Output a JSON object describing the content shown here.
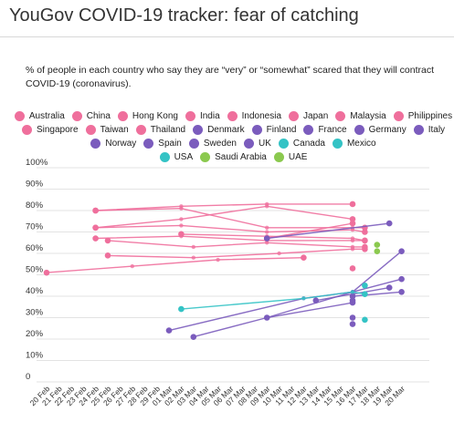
{
  "page": {
    "title": "YouGov COVID-19 tracker: fear of catching",
    "subtitle": "% of people in each country who say they are “very” or “somewhat” scared that they will contract COVID-19 (coronavirus)."
  },
  "colors": {
    "asia": "#ef6f9c",
    "europe": "#7b5cbd",
    "americas": "#34c3c5",
    "gulf": "#8bc94f"
  },
  "chart_data": {
    "type": "line",
    "title": "YouGov COVID-19 tracker: fear of catching",
    "xlabel": "",
    "ylabel": "",
    "ylim": [
      0,
      100
    ],
    "y_ticks": [
      "0",
      "10%",
      "20%",
      "30%",
      "40%",
      "50%",
      "60%",
      "70%",
      "80%",
      "90%",
      "100%"
    ],
    "x_ticks": [
      "20 Feb",
      "21 Feb",
      "22 Feb",
      "23 Feb",
      "24 Feb",
      "25 Feb",
      "26 Feb",
      "27 Feb",
      "28 Feb",
      "29 Feb",
      "01 Mar",
      "02 Mar",
      "03 Mar",
      "04 Mar",
      "05 Mar",
      "06 Mar",
      "07 Mar",
      "08 Mar",
      "09 Mar",
      "10 Mar",
      "11 Mar",
      "12 Mar",
      "13 Mar",
      "14 Mar",
      "15 Mar",
      "16 Mar",
      "17 Mar",
      "18 Mar",
      "19 Mar",
      "20 Mar"
    ],
    "grid": true,
    "legend_position": "top",
    "series": [
      {
        "name": "Australia",
        "color": "#ef6f9c",
        "points": [
          [
            4,
            67
          ],
          [
            11,
            68
          ],
          [
            18,
            66
          ],
          [
            25,
            66
          ],
          [
            26,
            66
          ]
        ]
      },
      {
        "name": "China",
        "color": "#ef6f9c",
        "points": [
          [
            0,
            51
          ],
          [
            7,
            54
          ],
          [
            14,
            57
          ],
          [
            21,
            58
          ]
        ]
      },
      {
        "name": "Hong Kong",
        "color": "#ef6f9c",
        "points": [
          [
            4,
            80
          ],
          [
            11,
            82
          ],
          [
            18,
            83
          ],
          [
            25,
            83
          ]
        ]
      },
      {
        "name": "India",
        "color": "#ef6f9c",
        "points": [
          [
            4,
            72
          ],
          [
            11,
            76
          ],
          [
            18,
            82
          ],
          [
            25,
            76
          ]
        ]
      },
      {
        "name": "Indonesia",
        "color": "#ef6f9c",
        "points": [
          [
            4,
            72
          ],
          [
            11,
            73
          ],
          [
            18,
            70
          ],
          [
            25,
            71
          ],
          [
            26,
            70
          ]
        ]
      },
      {
        "name": "Japan",
        "color": "#ef6f9c",
        "points": [
          [
            4,
            80
          ],
          [
            11,
            81
          ],
          [
            18,
            72
          ],
          [
            25,
            72
          ],
          [
            26,
            72
          ]
        ]
      },
      {
        "name": "Malaysia",
        "color": "#ef6f9c",
        "points": [
          [
            25,
            53
          ]
        ]
      },
      {
        "name": "Philippines",
        "color": "#ef6f9c",
        "points": [
          [
            11,
            69
          ],
          [
            18,
            68
          ],
          [
            25,
            67
          ],
          [
            26,
            66
          ]
        ]
      },
      {
        "name": "Singapore",
        "color": "#ef6f9c",
        "points": [
          [
            5,
            66
          ],
          [
            12,
            63
          ],
          [
            18,
            65
          ],
          [
            25,
            63
          ],
          [
            26,
            63
          ]
        ]
      },
      {
        "name": "Taiwan",
        "color": "#ef6f9c",
        "points": [
          [
            5,
            59
          ],
          [
            12,
            58
          ],
          [
            19,
            60
          ],
          [
            25,
            62
          ],
          [
            26,
            62
          ]
        ]
      },
      {
        "name": "Thailand",
        "color": "#ef6f9c",
        "points": [
          [
            18,
            67
          ],
          [
            25,
            74
          ]
        ]
      },
      {
        "name": "Denmark",
        "color": "#7b5cbd",
        "points": [
          [
            25,
            27
          ]
        ]
      },
      {
        "name": "Finland",
        "color": "#7b5cbd",
        "points": [
          [
            25,
            30
          ]
        ]
      },
      {
        "name": "France",
        "color": "#7b5cbd",
        "points": [
          [
            18,
            67
          ],
          [
            28,
            74
          ]
        ]
      },
      {
        "name": "Germany",
        "color": "#7b5cbd",
        "points": [
          [
            18,
            30
          ],
          [
            25,
            42
          ],
          [
            29,
            48
          ]
        ]
      },
      {
        "name": "Italy",
        "color": "#7b5cbd",
        "points": [
          [
            10,
            24
          ],
          [
            21,
            39
          ],
          [
            25,
            42
          ],
          [
            29,
            61
          ]
        ]
      },
      {
        "name": "Norway",
        "color": "#7b5cbd",
        "points": [
          [
            12,
            21
          ],
          [
            18,
            30
          ],
          [
            25,
            37
          ]
        ]
      },
      {
        "name": "Spain",
        "color": "#7b5cbd",
        "points": [
          [
            22,
            38
          ],
          [
            28,
            44
          ]
        ]
      },
      {
        "name": "Sweden",
        "color": "#7b5cbd",
        "points": [
          [
            25,
            38
          ]
        ]
      },
      {
        "name": "UK",
        "color": "#7b5cbd",
        "points": [
          [
            25,
            40
          ],
          [
            29,
            42
          ]
        ]
      },
      {
        "name": "Canada",
        "color": "#34c3c5",
        "points": [
          [
            26,
            29
          ]
        ]
      },
      {
        "name": "Mexico",
        "color": "#34c3c5",
        "points": [
          [
            11,
            34
          ],
          [
            21,
            39
          ],
          [
            25,
            42
          ],
          [
            26,
            41
          ]
        ]
      },
      {
        "name": "USA",
        "color": "#34c3c5",
        "points": [
          [
            26,
            45
          ]
        ]
      },
      {
        "name": "Saudi Arabia",
        "color": "#8bc94f",
        "points": [
          [
            27,
            64
          ]
        ]
      },
      {
        "name": "UAE",
        "color": "#8bc94f",
        "points": [
          [
            27,
            61
          ]
        ]
      }
    ]
  }
}
